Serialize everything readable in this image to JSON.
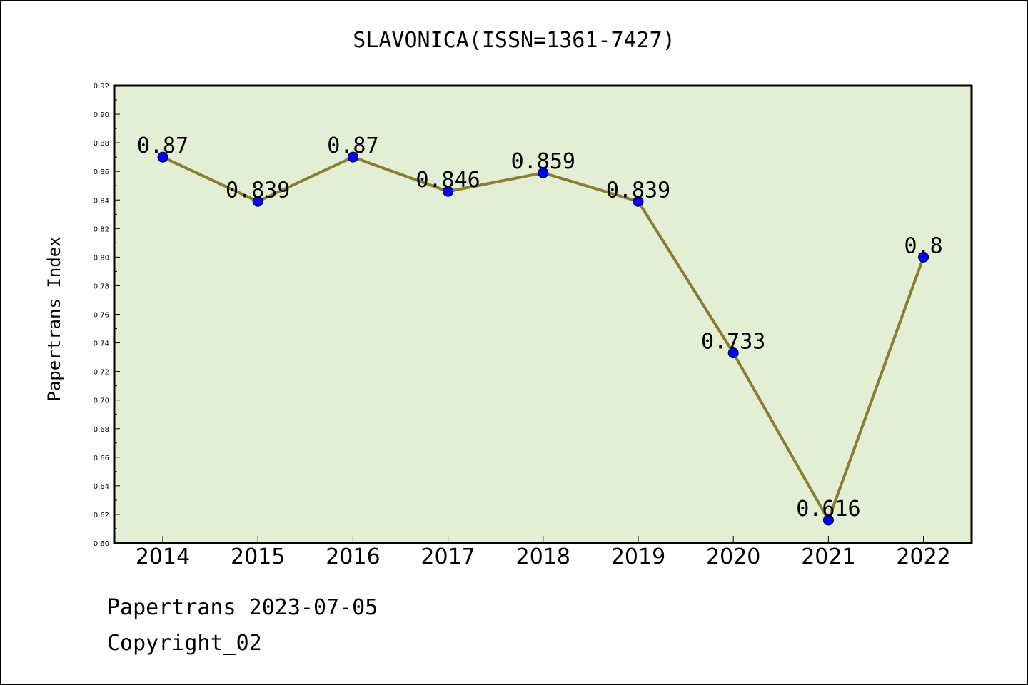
{
  "chart_data": {
    "type": "line",
    "title": "SLAVONICA(ISSN=1361-7427)",
    "xlabel": "",
    "ylabel": "Papertrans Index",
    "categories": [
      "2014",
      "2015",
      "2016",
      "2017",
      "2018",
      "2019",
      "2020",
      "2021",
      "2022"
    ],
    "values": [
      0.87,
      0.839,
      0.87,
      0.846,
      0.859,
      0.839,
      0.733,
      0.616,
      0.8
    ],
    "data_labels": [
      "0.87",
      "0.839",
      "0.87",
      "0.846",
      "0.859",
      "0.839",
      "0.733",
      "0.616",
      "0.8"
    ],
    "ylim": [
      0.6,
      0.92
    ],
    "yticks": [
      "0.60",
      "0.62",
      "0.64",
      "0.66",
      "0.68",
      "0.70",
      "0.72",
      "0.74",
      "0.76",
      "0.78",
      "0.80",
      "0.82",
      "0.84",
      "0.86",
      "0.88",
      "0.90",
      "0.92"
    ],
    "grid": false,
    "colors": {
      "plot_background": "#e2efd5",
      "line": "#8b7d35",
      "marker": "#0000ff"
    }
  },
  "footer": {
    "line1": "Papertrans 2023-07-05",
    "line2": "Copyright_02"
  }
}
